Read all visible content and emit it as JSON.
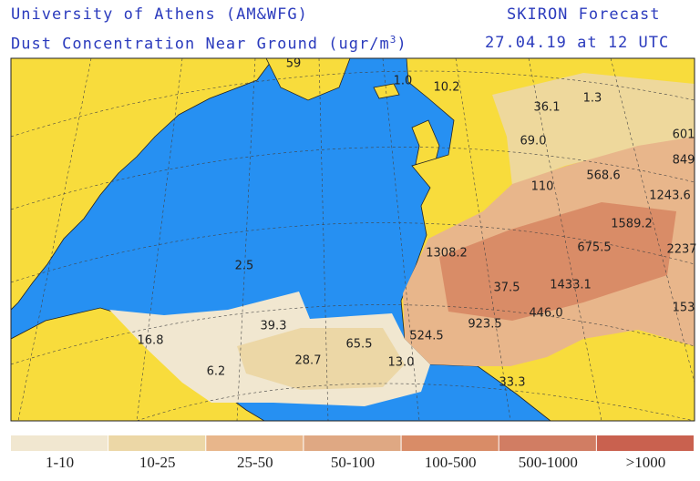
{
  "header": {
    "institution": "University of Athens (AM&WFG)",
    "product": "SKIRON Forecast",
    "subtitle": "Dust Concentration Near Ground (ugr/m",
    "superscript": "3",
    "subtitle_end": ")",
    "date": "27.04.19 at 12 UTC"
  },
  "map_labels": [
    "59",
    "1.0",
    "10.2",
    "36.1",
    "1.3",
    "69.0",
    "601",
    "849",
    "110",
    "568.6",
    "1243.6",
    "1589.2",
    "1308.2",
    "675.5",
    "2237",
    "2.5",
    "37.5",
    "1433.1",
    "153",
    "39.3",
    "923.5",
    "446.0",
    "16.8",
    "524.5",
    "65.5",
    "28.7",
    "13.0",
    "6.2",
    "33.3"
  ],
  "legend": [
    {
      "label": "1-10",
      "color": "#f1e7d0"
    },
    {
      "label": "10-25",
      "color": "#ecd7a6"
    },
    {
      "label": "25-50",
      "color": "#e8b68b"
    },
    {
      "label": "50-100",
      "color": "#dfa883"
    },
    {
      "label": "100-500",
      "color": "#d98c67"
    },
    {
      "label": "500-1000",
      "color": "#d17d63"
    },
    {
      "label": ">1000",
      "color": "#c9614f"
    }
  ]
}
